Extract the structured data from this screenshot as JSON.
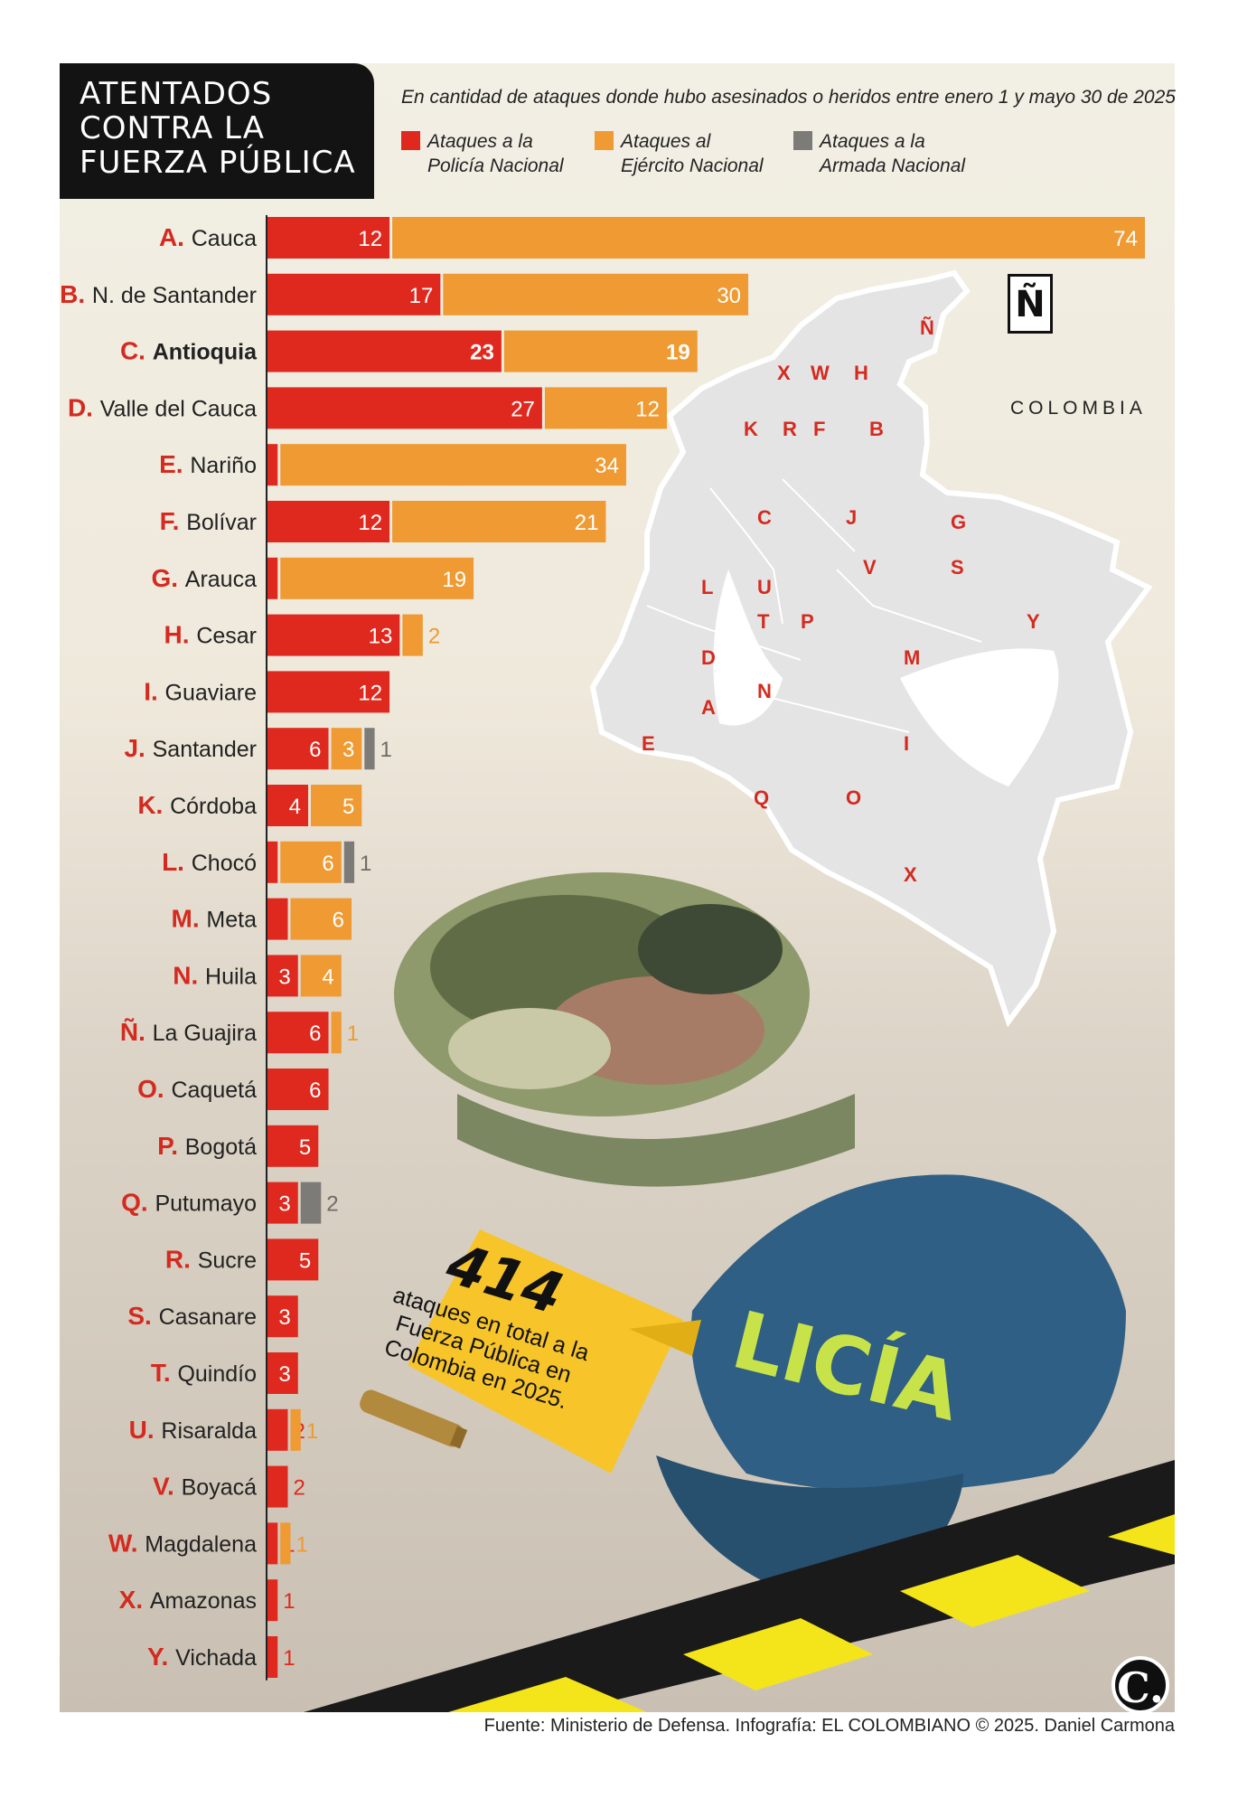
{
  "title_lines": [
    "ATENTADOS",
    "CONTRA LA",
    "FUERZA PÚBLICA"
  ],
  "subtitle": "En cantidad de ataques donde hubo asesinados o heridos entre enero 1 y mayo 30 de 2025",
  "legend": [
    {
      "label": "Ataques a la Policía Nacional",
      "color": "#e0291e"
    },
    {
      "label": "Ataques al Ejército Nacional",
      "color": "#ef9a32"
    },
    {
      "label": "Ataques a la Armada Nacional",
      "color": "#7d7b77"
    }
  ],
  "chart_data": {
    "type": "bar",
    "orientation": "horizontal",
    "stacked": true,
    "categories": [
      {
        "letter": "A.",
        "name": "Cauca"
      },
      {
        "letter": "B.",
        "name": "N. de Santander"
      },
      {
        "letter": "C.",
        "name": "Antioquia",
        "bold": true
      },
      {
        "letter": "D.",
        "name": "Valle del Cauca"
      },
      {
        "letter": "E.",
        "name": "Nariño"
      },
      {
        "letter": "F.",
        "name": "Bolívar"
      },
      {
        "letter": "G.",
        "name": "Arauca"
      },
      {
        "letter": "H.",
        "name": "Cesar"
      },
      {
        "letter": "I.",
        "name": "Guaviare"
      },
      {
        "letter": "J.",
        "name": "Santander"
      },
      {
        "letter": "K.",
        "name": "Córdoba"
      },
      {
        "letter": "L.",
        "name": "Chocó"
      },
      {
        "letter": "M.",
        "name": "Meta"
      },
      {
        "letter": "N.",
        "name": "Huila"
      },
      {
        "letter": "Ñ.",
        "name": "La Guajira"
      },
      {
        "letter": "O.",
        "name": "Caquetá"
      },
      {
        "letter": "P.",
        "name": "Bogotá"
      },
      {
        "letter": "Q.",
        "name": "Putumayo"
      },
      {
        "letter": "R.",
        "name": "Sucre"
      },
      {
        "letter": "S.",
        "name": "Casanare"
      },
      {
        "letter": "T.",
        "name": "Quindío"
      },
      {
        "letter": "U.",
        "name": "Risaralda"
      },
      {
        "letter": "V.",
        "name": "Boyacá"
      },
      {
        "letter": "W.",
        "name": "Magdalena"
      },
      {
        "letter": "X.",
        "name": "Amazonas"
      },
      {
        "letter": "Y.",
        "name": "Vichada"
      }
    ],
    "series": [
      {
        "name": "Ataques a la Policía Nacional",
        "color": "#e0291e",
        "values": [
          12,
          17,
          23,
          27,
          1,
          12,
          1,
          13,
          12,
          6,
          4,
          1,
          2,
          3,
          6,
          6,
          5,
          3,
          5,
          3,
          3,
          2,
          2,
          1,
          1,
          1
        ]
      },
      {
        "name": "Ataques al Ejército Nacional",
        "color": "#ef9a32",
        "values": [
          74,
          30,
          19,
          12,
          34,
          21,
          19,
          2,
          0,
          3,
          5,
          6,
          6,
          4,
          1,
          0,
          0,
          0,
          0,
          0,
          0,
          1,
          0,
          1,
          0,
          0
        ]
      },
      {
        "name": "Ataques a la Armada Nacional",
        "color": "#7d7b77",
        "values": [
          0,
          0,
          0,
          0,
          0,
          0,
          0,
          0,
          0,
          1,
          0,
          1,
          0,
          0,
          0,
          0,
          0,
          2,
          0,
          0,
          0,
          0,
          0,
          0,
          0,
          0
        ]
      }
    ],
    "max_value": 86
  },
  "map": {
    "title": "COLOMBIA",
    "compass": "Ñ",
    "letters": [
      "Ñ",
      "X",
      "W",
      "H",
      "K",
      "R",
      "F",
      "B",
      "C",
      "J",
      "G",
      "S",
      "V",
      "L",
      "U",
      "T",
      "P",
      "Y",
      "D",
      "M",
      "N",
      "A",
      "E",
      "I",
      "Q",
      "O",
      "X"
    ]
  },
  "total": {
    "number": "414",
    "text": "ataques en total a la Fuerza Pública en Colombia en 2025."
  },
  "logo": "C.",
  "source": "Fuente: Ministerio de Defensa. Infografía: EL COLOMBIANO © 2025. Daniel Carmona"
}
